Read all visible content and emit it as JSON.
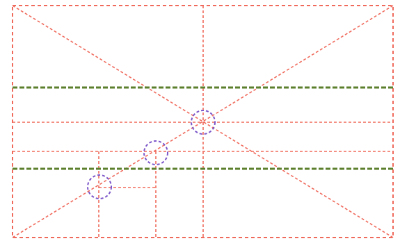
{
  "colors": {
    "background": "#ffffff",
    "frame_lines": "#f06a5c",
    "horizon_lines": "#5b7f2c",
    "focus_circles": "#7b55c9"
  },
  "diagram": {
    "description_text": "",
    "composition_guides": {
      "frame": "dashed-rectangle",
      "diagonals": 2,
      "grid_verticals": 3,
      "grid_horizontals": 3,
      "horizon_lines": 2,
      "focus_points": 3
    }
  }
}
